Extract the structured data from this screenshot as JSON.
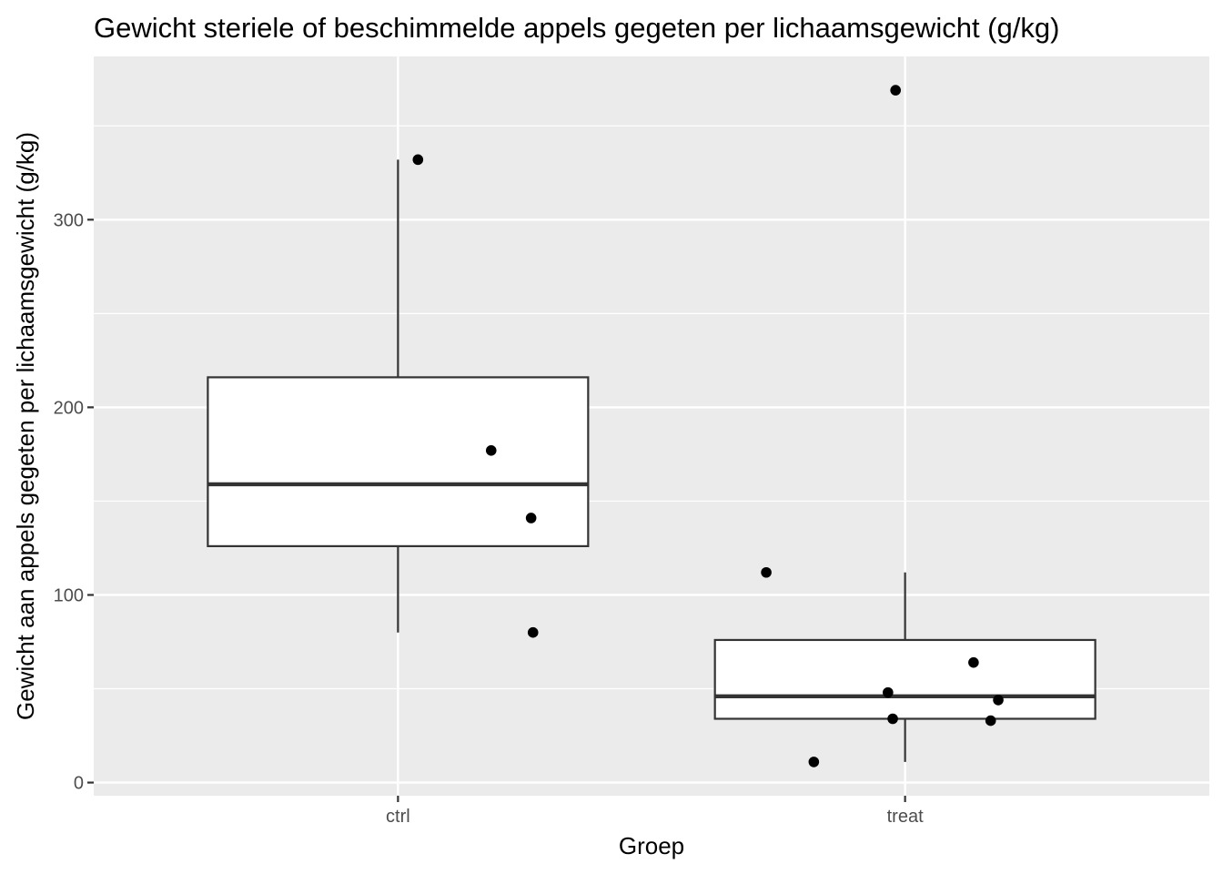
{
  "chart_data": {
    "type": "boxplot",
    "title": "Gewicht steriele of beschimmelde appels gegeten per lichaamsgewicht (g/kg)",
    "xlabel": "Groep",
    "ylabel": "Gewicht aan appels gegeten per lichaamsgewicht (g/kg)",
    "categories": [
      "ctrl",
      "treat"
    ],
    "ylim": [
      -7,
      387
    ],
    "yticks": [
      0,
      100,
      200,
      300
    ],
    "grid": true,
    "boxes": [
      {
        "group": "ctrl",
        "min": 80,
        "q1": 126,
        "median": 159,
        "q3": 216,
        "max": 332
      },
      {
        "group": "treat",
        "min": 11,
        "q1": 34,
        "median": 46,
        "q3": 76,
        "max": 112
      }
    ],
    "points": [
      {
        "group": "ctrl",
        "jitter": 0.105,
        "y": 332
      },
      {
        "group": "ctrl",
        "jitter": 0.49,
        "y": 177
      },
      {
        "group": "ctrl",
        "jitter": 0.7,
        "y": 141
      },
      {
        "group": "ctrl",
        "jitter": 0.71,
        "y": 80
      },
      {
        "group": "treat",
        "jitter": -0.73,
        "y": 112
      },
      {
        "group": "treat",
        "jitter": -0.48,
        "y": 11
      },
      {
        "group": "treat",
        "jitter": -0.09,
        "y": 48
      },
      {
        "group": "treat",
        "jitter": -0.065,
        "y": 34
      },
      {
        "group": "treat",
        "jitter": -0.05,
        "y": 369
      },
      {
        "group": "treat",
        "jitter": 0.36,
        "y": 64
      },
      {
        "group": "treat",
        "jitter": 0.45,
        "y": 33
      },
      {
        "group": "treat",
        "jitter": 0.49,
        "y": 44
      }
    ],
    "colors": {
      "panel": "#ebebeb",
      "grid": "#ffffff",
      "box_line": "#333333",
      "point": "#000000"
    }
  }
}
